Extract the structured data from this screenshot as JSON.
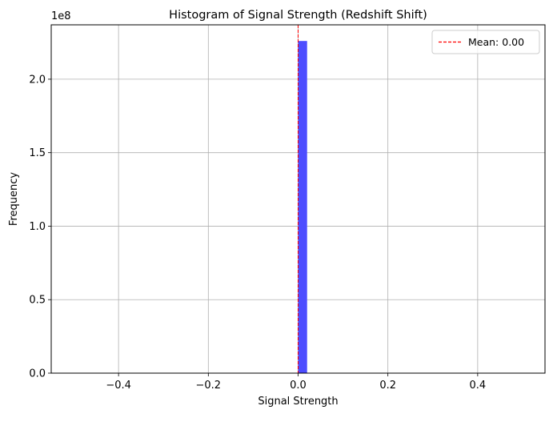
{
  "chart_data": {
    "type": "bar",
    "title": "Histogram of Signal Strength (Redshift Shift)",
    "xlabel": "Signal Strength",
    "ylabel": "Frequency",
    "y_offset_text": "1e8",
    "xlim": [
      -0.55,
      0.55
    ],
    "ylim": [
      0,
      237000000
    ],
    "y_scale_factor": 100000000,
    "x_ticks": [
      -0.4,
      -0.2,
      0.0,
      0.2,
      0.4
    ],
    "x_tick_labels": [
      "−0.4",
      "−0.2",
      "0.0",
      "0.2",
      "0.4"
    ],
    "y_ticks": [
      0,
      50000000,
      100000000,
      150000000,
      200000000
    ],
    "y_tick_labels": [
      "0.0",
      "0.5",
      "1.0",
      "1.5",
      "2.0"
    ],
    "bins": [
      {
        "x0": 0.0,
        "x1": 0.02,
        "count": 226000000
      }
    ],
    "mean_line": {
      "x": 0.0,
      "color": "#ff0000"
    },
    "legend": {
      "position": "upper right",
      "entries": [
        {
          "label": "Mean: 0.00"
        }
      ]
    },
    "grid": true,
    "colors": {
      "bar": "#4d4dff",
      "mean": "#ff0000",
      "grid": "#b0b0b0"
    }
  }
}
